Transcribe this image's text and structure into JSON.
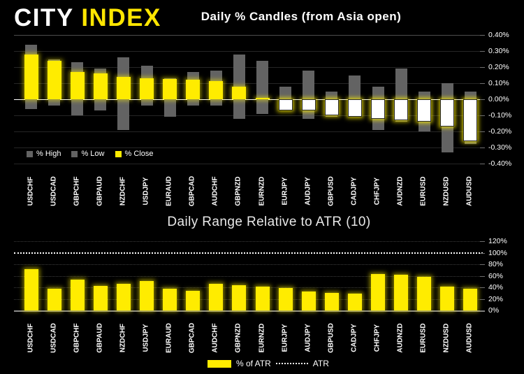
{
  "logo": {
    "city": "CITY",
    "index": "INDEX"
  },
  "colors": {
    "background": "#000000",
    "brand_yellow": "#ffe600",
    "bar_yellow": "#ffec00",
    "bar_gray": "#636363",
    "negative_close_fill": "#ffffff",
    "zero_line": "#ffffff",
    "text": "#ffffff"
  },
  "chart_data": [
    {
      "type": "bar",
      "title": "Daily % Candles (from Asia open)",
      "categories": [
        "USDCHF",
        "USDCAD",
        "GBPCHF",
        "GBPAUD",
        "NZDCHF",
        "USDJPY",
        "EURAUD",
        "GBPCAD",
        "AUDCHF",
        "GBPNZD",
        "EURNZD",
        "EURJPY",
        "AUDJPY",
        "GBPUSD",
        "CADJPY",
        "CHFJPY",
        "AUDNZD",
        "EURUSD",
        "NZDUSD",
        "AUDUSD"
      ],
      "series": [
        {
          "name": "% High",
          "color": "#636363",
          "values": [
            0.34,
            0.25,
            0.23,
            0.19,
            0.26,
            0.21,
            0.13,
            0.17,
            0.18,
            0.28,
            0.24,
            0.08,
            0.18,
            0.05,
            0.15,
            0.08,
            0.19,
            0.05,
            0.1,
            0.05
          ]
        },
        {
          "name": "% Low",
          "color": "#636363",
          "values": [
            -0.06,
            -0.04,
            -0.1,
            -0.07,
            -0.19,
            -0.04,
            -0.11,
            -0.04,
            -0.04,
            -0.12,
            -0.09,
            -0.07,
            -0.12,
            -0.11,
            -0.11,
            -0.19,
            -0.14,
            -0.2,
            -0.33,
            -0.28
          ]
        },
        {
          "name": "% Close",
          "color": "#ffec00",
          "values": [
            0.28,
            0.24,
            0.17,
            0.16,
            0.14,
            0.13,
            0.125,
            0.12,
            0.115,
            0.08,
            0.01,
            -0.07,
            -0.07,
            -0.1,
            -0.11,
            -0.12,
            -0.13,
            -0.14,
            -0.17,
            -0.26
          ]
        }
      ],
      "ylim": [
        -0.4,
        0.4
      ],
      "ytick_labels": [
        "0.40%",
        "0.30%",
        "0.20%",
        "0.10%",
        "0.00%",
        "-0.10%",
        "-0.20%",
        "-0.30%",
        "-0.40%"
      ],
      "grid": true,
      "legend_position": "inside-bottom-left"
    },
    {
      "type": "bar",
      "title": "Daily Range Relative to ATR (10)",
      "categories": [
        "USDCHF",
        "USDCAD",
        "GBPCHF",
        "GBPAUD",
        "NZDCHF",
        "USDJPY",
        "EURAUD",
        "GBPCAD",
        "AUDCHF",
        "GBPNZD",
        "EURNZD",
        "EURJPY",
        "AUDJPY",
        "GBPUSD",
        "CADJPY",
        "CHFJPY",
        "AUDNZD",
        "EURUSD",
        "NZDUSD",
        "AUDUSD"
      ],
      "series": [
        {
          "name": "% of ATR",
          "color": "#ffec00",
          "values": [
            72,
            38,
            53,
            43,
            46,
            51,
            37,
            34,
            46,
            44,
            41,
            39,
            33,
            30,
            29,
            63,
            62,
            58,
            41,
            37
          ]
        }
      ],
      "atr_line": 100,
      "atr_label": "ATR",
      "ylim": [
        0,
        120
      ],
      "ytick_labels": [
        "120%",
        "100%",
        "80%",
        "60%",
        "40%",
        "20%",
        "0%"
      ],
      "grid": true,
      "legend_position": "below-center"
    }
  ]
}
